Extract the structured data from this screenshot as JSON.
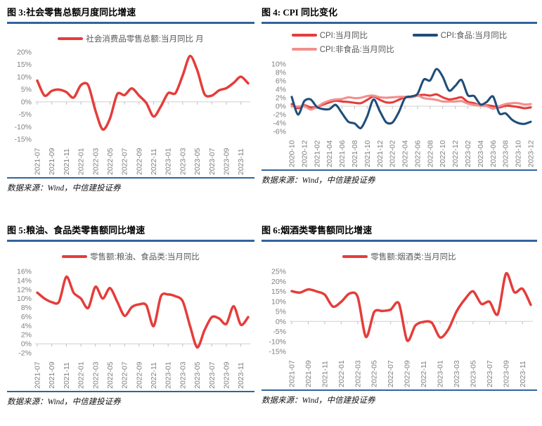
{
  "colors": {
    "red": "#e43d3a",
    "pink": "#f0908e",
    "blue": "#1f4e79",
    "rule_blue": "#31649b",
    "axis_line": "#d9d9d9",
    "tick": "#bfbfbf",
    "axis_label": "#7f7f7f",
    "legend_label": "#595959"
  },
  "chart_data": [
    {
      "id": "figure-3",
      "type": "line",
      "title": "图 3:社会零售总额月度同比增速",
      "source": "数据来源：Wind，中信建投证券",
      "grid": "zero-line-only",
      "legend_position": "top-center",
      "ylim": [
        -15,
        20
      ],
      "ytick_labels": [
        "20%",
        "15%",
        "10%",
        "5%",
        "0%",
        "-5%",
        "-10%",
        "-15%"
      ],
      "xtick_every": 2,
      "categories": [
        "2021-07",
        "2021-08",
        "2021-09",
        "2021-10",
        "2021-11",
        "2021-12",
        "2022-01",
        "2022-02",
        "2022-03",
        "2022-04",
        "2022-05",
        "2022-06",
        "2022-07",
        "2022-08",
        "2022-09",
        "2022-10",
        "2022-11",
        "2022-12",
        "2023-01",
        "2023-02",
        "2023-03",
        "2023-04",
        "2023-05",
        "2023-06",
        "2023-07",
        "2023-08",
        "2023-09",
        "2023-10",
        "2023-11",
        "2023-12"
      ],
      "series": [
        {
          "name": "社会消费品零售总额:当月同比 月",
          "color": "red",
          "z": 1,
          "values": [
            8.5,
            2.5,
            4.4,
            4.9,
            3.9,
            1.7,
            6.7,
            6.7,
            -3.5,
            -11.1,
            -6.7,
            3.1,
            2.7,
            5.4,
            2.5,
            -0.5,
            -5.9,
            -1.8,
            3.5,
            3.5,
            10.6,
            18.4,
            12.7,
            3.1,
            2.5,
            4.6,
            5.5,
            7.6,
            10.1,
            7.4
          ]
        }
      ]
    },
    {
      "id": "figure-4",
      "type": "line",
      "title": "图 4: CPI 同比变化",
      "source": "数据来源：Wind，中信建投证券",
      "grid": "zero-line-only",
      "legend_position": "top-center-two-rows",
      "ylim": [
        -6,
        10
      ],
      "ytick_labels": [
        "10%",
        "8%",
        "6%",
        "4%",
        "2%",
        "0%",
        "-2%",
        "-4%",
        "-6%"
      ],
      "xtick_every": 2,
      "categories": [
        "2020-10",
        "2020-11",
        "2020-12",
        "2021-01",
        "2021-02",
        "2021-03",
        "2021-04",
        "2021-05",
        "2021-06",
        "2021-07",
        "2021-08",
        "2021-09",
        "2021-10",
        "2021-11",
        "2021-12",
        "2022-01",
        "2022-02",
        "2022-03",
        "2022-04",
        "2022-05",
        "2022-06",
        "2022-07",
        "2022-08",
        "2022-09",
        "2022-10",
        "2022-11",
        "2022-12",
        "2023-01",
        "2023-02",
        "2023-03",
        "2023-04",
        "2023-05",
        "2023-06",
        "2023-07",
        "2023-08",
        "2023-09",
        "2023-10",
        "2023-11",
        "2023-12"
      ],
      "series": [
        {
          "name": "CPI:当月同比",
          "color": "red",
          "z": 1,
          "values": [
            0.5,
            -0.5,
            0.2,
            -0.3,
            -0.2,
            0.4,
            0.9,
            1.3,
            1.1,
            1.0,
            0.8,
            0.7,
            1.5,
            2.3,
            1.5,
            0.9,
            0.9,
            1.5,
            2.1,
            2.1,
            2.5,
            2.7,
            2.5,
            2.8,
            2.1,
            1.6,
            1.8,
            2.1,
            1.0,
            0.7,
            0.1,
            0.2,
            0.0,
            -0.3,
            0.1,
            0.0,
            -0.2,
            -0.5,
            -0.3
          ]
        },
        {
          "name": "CPI:食品:当月同比",
          "color": "blue",
          "z": 3,
          "values": [
            2.2,
            -2.0,
            1.2,
            1.6,
            -0.2,
            -0.7,
            -0.7,
            0.3,
            -1.7,
            -3.7,
            -4.1,
            -5.2,
            -2.4,
            1.6,
            -1.2,
            -3.8,
            -3.9,
            -1.5,
            1.9,
            2.3,
            2.9,
            6.3,
            6.1,
            8.8,
            7.0,
            3.7,
            4.8,
            6.2,
            2.6,
            2.4,
            0.4,
            1.0,
            2.3,
            -1.7,
            -1.7,
            -3.2,
            -4.0,
            -4.2,
            -3.7
          ]
        },
        {
          "name": "CPI:非食品:当月同比",
          "color": "pink",
          "z": 2,
          "values": [
            0.0,
            -0.1,
            0.0,
            -0.8,
            -0.2,
            0.7,
            1.3,
            1.6,
            1.7,
            2.1,
            1.9,
            2.0,
            2.4,
            2.5,
            2.1,
            2.0,
            2.1,
            2.2,
            2.2,
            2.1,
            2.5,
            1.9,
            1.7,
            1.5,
            1.1,
            1.1,
            1.1,
            1.2,
            0.6,
            0.3,
            0.1,
            0.0,
            -0.6,
            0.0,
            0.5,
            0.7,
            0.7,
            0.4,
            0.5
          ]
        }
      ]
    },
    {
      "id": "figure-5",
      "type": "line",
      "title": "图 5:粮油、食品类零售额同比增速",
      "source": "数据来源：Wind，中信建投证券",
      "grid": "zero-line-only",
      "legend_position": "top-center",
      "ylim": [
        -2,
        16
      ],
      "ytick_labels": [
        "16%",
        "14%",
        "12%",
        "10%",
        "8%",
        "6%",
        "4%",
        "2%",
        "0%",
        "-2%"
      ],
      "xtick_every": 2,
      "categories": [
        "2021-07",
        "2021-08",
        "2021-09",
        "2021-10",
        "2021-11",
        "2021-12",
        "2022-01",
        "2022-02",
        "2022-03",
        "2022-04",
        "2022-05",
        "2022-06",
        "2022-07",
        "2022-08",
        "2022-09",
        "2022-10",
        "2022-11",
        "2022-12",
        "2023-01",
        "2023-02",
        "2023-03",
        "2023-04",
        "2023-05",
        "2023-06",
        "2023-07",
        "2023-08",
        "2023-09",
        "2023-10",
        "2023-11",
        "2023-12"
      ],
      "series": [
        {
          "name": "零售额:粮油、食品类:当月同比",
          "color": "red",
          "z": 1,
          "values": [
            11.3,
            10.0,
            9.2,
            9.3,
            14.8,
            11.3,
            10.0,
            7.9,
            12.6,
            10.0,
            12.3,
            9.3,
            6.2,
            8.1,
            8.7,
            8.5,
            3.9,
            10.5,
            10.9,
            10.5,
            9.4,
            4.0,
            -0.8,
            3.0,
            5.9,
            5.6,
            4.4,
            8.3,
            4.2,
            5.9
          ]
        }
      ]
    },
    {
      "id": "figure-6",
      "type": "line",
      "title": "图 6:烟酒类零售额同比增速",
      "source": "数据来源：Wind，中信建投证券",
      "grid": "zero-line-only",
      "legend_position": "top-center",
      "ylim": [
        -15,
        25
      ],
      "ytick_labels": [
        "25%",
        "20%",
        "15%",
        "10%",
        "5%",
        "0%",
        "-5%",
        "-10%",
        "-15%"
      ],
      "xtick_every": 2,
      "categories": [
        "2021-07",
        "2021-08",
        "2021-09",
        "2021-10",
        "2021-11",
        "2021-12",
        "2022-01",
        "2022-02",
        "2022-03",
        "2022-04",
        "2022-05",
        "2022-06",
        "2022-07",
        "2022-08",
        "2022-09",
        "2022-10",
        "2022-11",
        "2022-12",
        "2023-01",
        "2023-02",
        "2023-03",
        "2023-04",
        "2023-05",
        "2023-06",
        "2023-07",
        "2023-08",
        "2023-09",
        "2023-10",
        "2023-11",
        "2023-12"
      ],
      "series": [
        {
          "name": "零售额:烟酒类:当月同比",
          "color": "red",
          "z": 1,
          "values": [
            15.1,
            14.4,
            16.0,
            15.0,
            13.4,
            7.4,
            9.8,
            13.9,
            12.3,
            -7.7,
            4.7,
            5.2,
            5.9,
            9.0,
            -9.5,
            -2.0,
            -0.2,
            -0.7,
            -8.0,
            -4.0,
            5.0,
            11.0,
            15.0,
            8.8,
            9.8,
            3.6,
            23.9,
            14.6,
            16.3,
            8.3
          ]
        }
      ]
    }
  ]
}
